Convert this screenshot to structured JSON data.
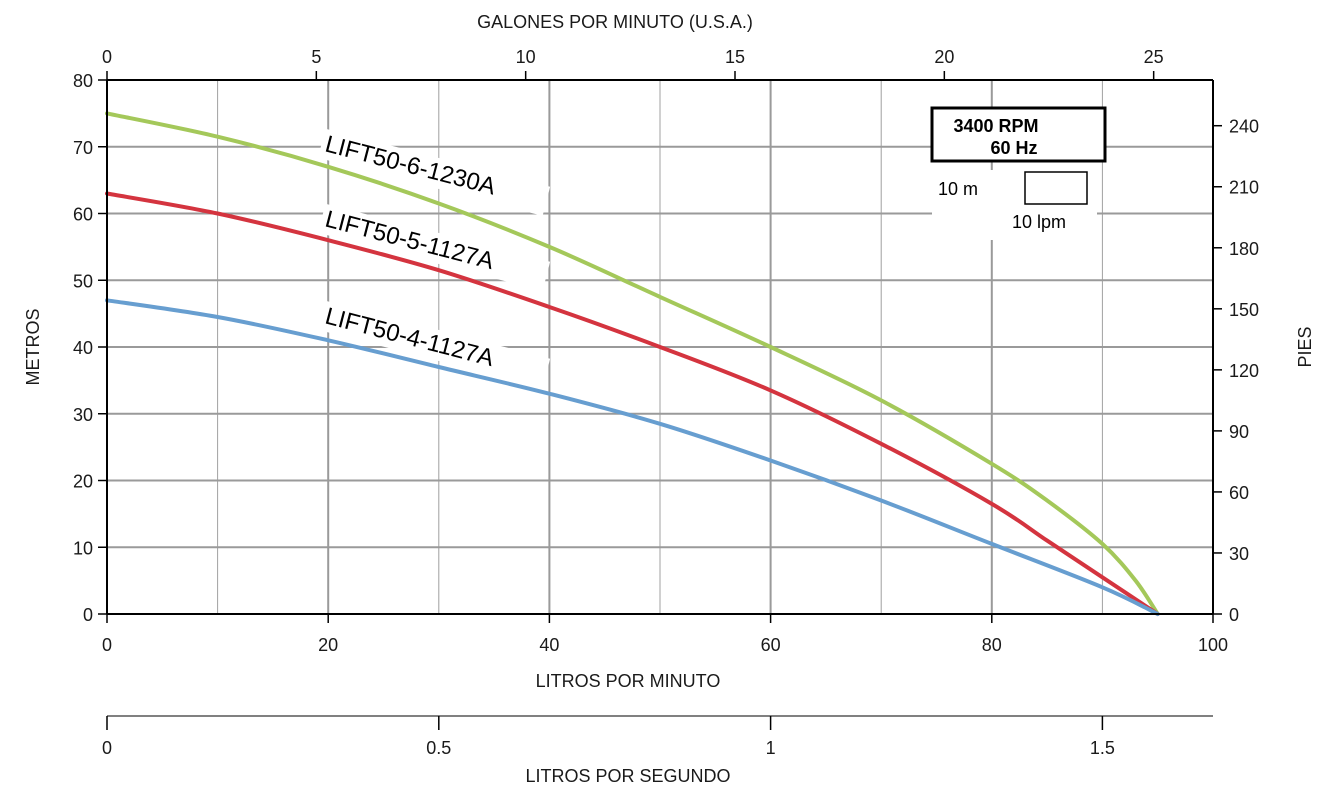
{
  "chart_data": {
    "type": "line",
    "x_axis_bottom": {
      "label": "LITROS POR MINUTO",
      "range": [
        0,
        100
      ],
      "ticks": [
        0,
        20,
        40,
        60,
        80,
        100
      ],
      "minor_grid": [
        10,
        30,
        50,
        70,
        90
      ]
    },
    "x_axis_top": {
      "label": "GALONES POR MINUTO (U.S.A.)",
      "ticks": [
        0,
        5,
        10,
        15,
        20,
        25
      ]
    },
    "x_axis_lps": {
      "label": "LITROS POR SEGUNDO",
      "ticks": [
        0,
        0.5,
        1,
        1.5
      ]
    },
    "y_axis_left": {
      "label": "METROS",
      "range": [
        0,
        80
      ],
      "ticks": [
        0,
        10,
        20,
        30,
        40,
        50,
        60,
        70,
        80
      ]
    },
    "y_axis_right": {
      "label": "PIES",
      "ticks": [
        0,
        30,
        60,
        90,
        120,
        150,
        180,
        210,
        240
      ]
    },
    "grid": true,
    "series": [
      {
        "name": "LIFT50-6-1230A",
        "color": "#a4c85a",
        "x": [
          0,
          10,
          20,
          30,
          40,
          50,
          60,
          70,
          80,
          85,
          90,
          93,
          95
        ],
        "y": [
          75,
          71.5,
          67,
          61.5,
          55,
          47.5,
          40,
          32,
          22.5,
          17,
          10.5,
          5,
          0
        ]
      },
      {
        "name": "LIFT50-5-1127A",
        "color": "#d4343f",
        "x": [
          0,
          10,
          20,
          30,
          40,
          50,
          60,
          70,
          80,
          85,
          90,
          95
        ],
        "y": [
          63,
          60,
          56,
          51.5,
          46,
          40,
          33.5,
          25.5,
          16.5,
          11,
          5.5,
          0
        ]
      },
      {
        "name": "LIFT50-4-1127A",
        "color": "#679ed0",
        "x": [
          0,
          10,
          20,
          30,
          40,
          50,
          60,
          70,
          80,
          90,
          95
        ],
        "y": [
          47,
          44.5,
          41,
          37,
          33,
          28.5,
          23,
          17,
          10.5,
          4,
          0
        ]
      }
    ],
    "note": {
      "rpm": "3400 RPM",
      "hz": "60 Hz",
      "scale_v": "10 m",
      "scale_h": "10 lpm"
    }
  }
}
